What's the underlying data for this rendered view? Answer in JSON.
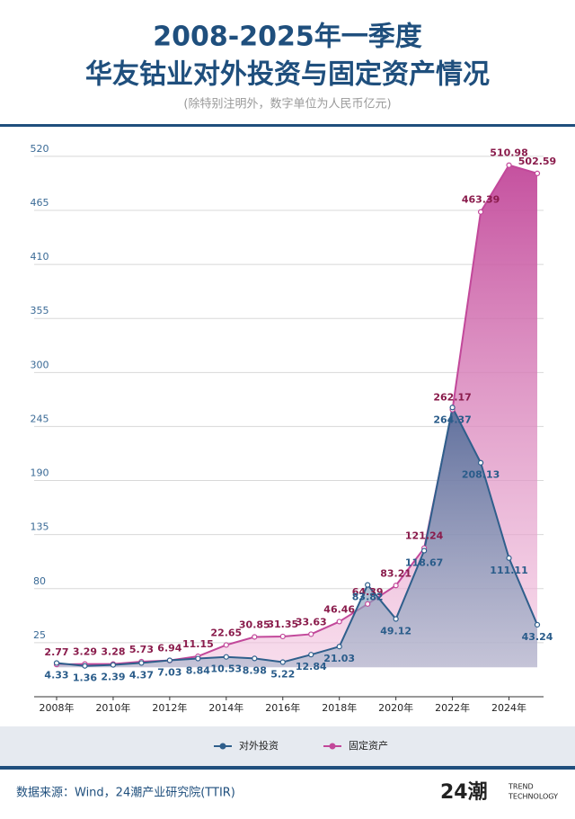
{
  "chart_data": {
    "type": "area",
    "title": [
      "2008-2025年一季度",
      "华友钴业对外投资与固定资产情况"
    ],
    "subtitle": "(除特别注明外，数字单位为人民币亿元)",
    "x": [
      2008,
      2009,
      2010,
      2011,
      2012,
      2013,
      2014,
      2015,
      2016,
      2017,
      2018,
      2019,
      2020,
      2021,
      2022,
      2023,
      2024,
      2025
    ],
    "xticks": [
      {
        "value": 2008,
        "label": "2008年"
      },
      {
        "value": 2010,
        "label": "2010年"
      },
      {
        "value": 2012,
        "label": "2012年"
      },
      {
        "value": 2014,
        "label": "2014年"
      },
      {
        "value": 2016,
        "label": "2016年"
      },
      {
        "value": 2018,
        "label": "2018年"
      },
      {
        "value": 2020,
        "label": "2020年"
      },
      {
        "value": 2022,
        "label": "2022年"
      },
      {
        "value": 2024,
        "label": "2024年"
      }
    ],
    "xlim": [
      2008,
      2025
    ],
    "ylim": [
      -30,
      540
    ],
    "yticks": [
      25,
      80,
      135,
      190,
      245,
      300,
      355,
      410,
      465,
      520
    ],
    "grid": true,
    "legend": "bottom",
    "series": [
      {
        "name": "固定资产",
        "color": "#c2489a",
        "label_color": "#8a1c4c",
        "values": [
          2.77,
          3.29,
          3.28,
          5.73,
          6.94,
          11.15,
          22.65,
          30.85,
          31.35,
          33.63,
          46.46,
          64.39,
          83.21,
          121.24,
          262.17,
          463.39,
          510.98,
          502.59
        ]
      },
      {
        "name": "对外投资",
        "color": "#2f5f8c",
        "label_color": "#2a5c8a",
        "values": [
          4.33,
          1.36,
          2.39,
          4.37,
          7.03,
          8.84,
          10.53,
          8.98,
          5.22,
          12.84,
          21.03,
          83.82,
          49.12,
          118.67,
          264.37,
          208.13,
          111.11,
          43.24
        ]
      }
    ]
  },
  "footer": {
    "source": "数据来源：Wind，24潮产业研究院(TTIR)",
    "logo": "24潮",
    "tagline": [
      "TREND",
      "TECHNOLOGY"
    ]
  }
}
